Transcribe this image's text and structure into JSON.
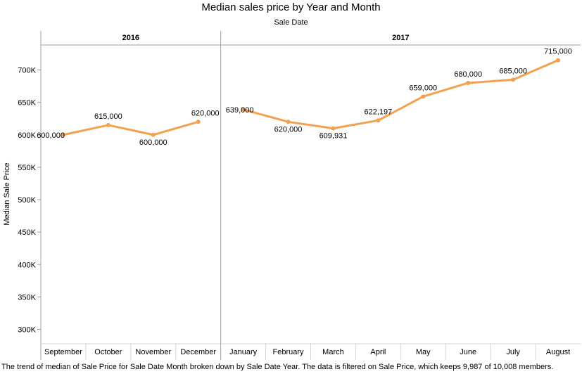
{
  "chart_data": {
    "type": "line",
    "title": "Median sales price by Year and Month",
    "x_header": "Sale Date",
    "ylabel": "Median Sale Price",
    "ylim": [
      280000,
      740000
    ],
    "y_ticks": [
      {
        "value": 300000,
        "label": "300K"
      },
      {
        "value": 350000,
        "label": "350K"
      },
      {
        "value": 400000,
        "label": "400K"
      },
      {
        "value": 450000,
        "label": "450K"
      },
      {
        "value": 500000,
        "label": "500K"
      },
      {
        "value": 550000,
        "label": "550K"
      },
      {
        "value": 600000,
        "label": "600K"
      },
      {
        "value": 650000,
        "label": "650K"
      },
      {
        "value": 700000,
        "label": "700K"
      }
    ],
    "grid": false,
    "line_color": "#f3a04f",
    "panels": [
      {
        "year": "2016",
        "months": [
          "September",
          "October",
          "November",
          "December"
        ],
        "values": [
          600000,
          615000,
          600000,
          620000
        ],
        "labels": [
          "600,000",
          "615,000",
          "600,000",
          "620,000"
        ]
      },
      {
        "year": "2017",
        "months": [
          "January",
          "February",
          "March",
          "April",
          "May",
          "June",
          "July",
          "August"
        ],
        "values": [
          639000,
          620000,
          609931,
          622197,
          659000,
          680000,
          685000,
          715000
        ],
        "labels": [
          "639,000",
          "620,000",
          "609,931",
          "622,197",
          "659,000",
          "680,000",
          "685,000",
          "715,000"
        ]
      }
    ]
  },
  "caption": "The trend of median of Sale Price for Sale Date Month broken down by Sale Date Year.  The data is filtered on Sale Price, which keeps 9,987 of 10,008 members."
}
